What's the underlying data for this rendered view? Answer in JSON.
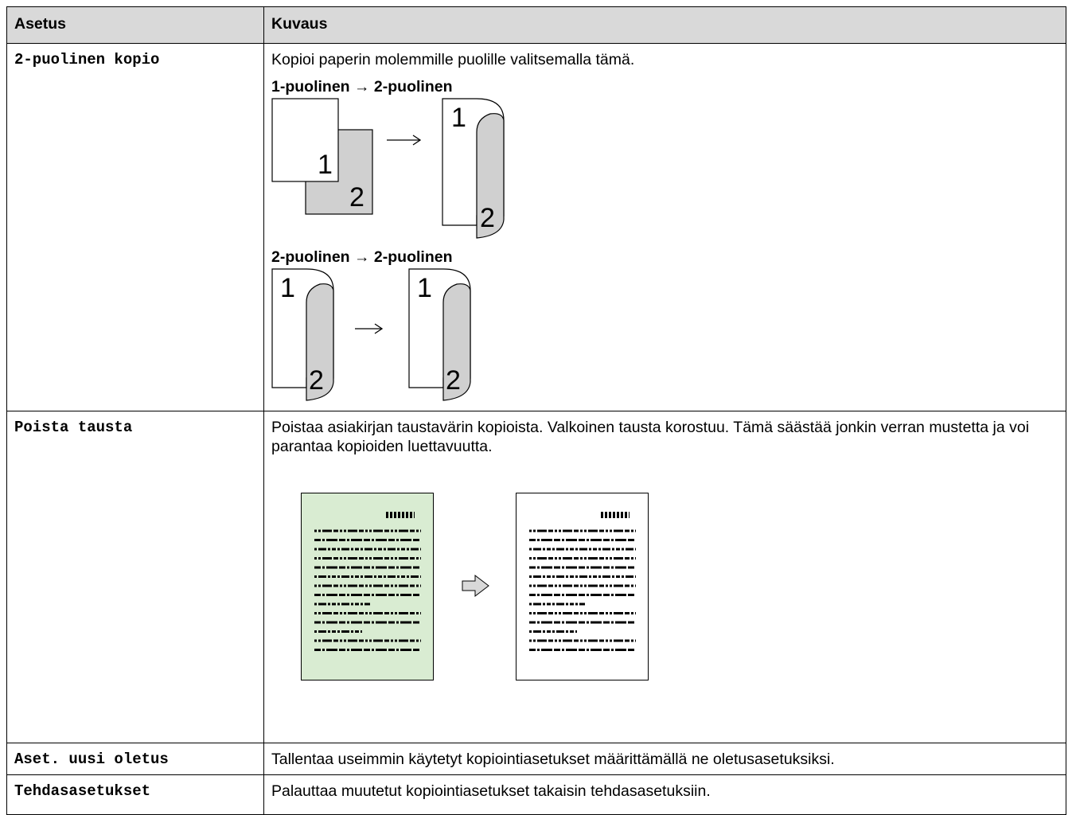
{
  "table": {
    "header": [
      "Asetus",
      "Kuvaus"
    ],
    "rows": [
      {
        "setting": "2-puolinen kopio",
        "description": "Kopioi paperin molemmille puolille valitsemalla tämä.",
        "options": [
          {
            "label": "1-puolinen → 2-puolinen",
            "figure_labels": [
              "1",
              "2",
              "1",
              "2"
            ]
          },
          {
            "label": "2-puolinen → 2-puolinen",
            "figure_labels": [
              "1",
              "2",
              "1",
              "2"
            ]
          }
        ]
      },
      {
        "setting": "Poista tausta",
        "description": "Poistaa asiakirjan taustavärin kopioista. Valkoinen tausta korostuu. Tämä säästää jonkin verran mustetta ja voi parantaa kopioiden luettavuutta."
      },
      {
        "setting": "Aset. uusi oletus",
        "description": "Tallentaa useimmin käytetyt kopiointiasetukset määrittämällä ne oletusasetuksiksi."
      },
      {
        "setting": "Tehdasasetukset",
        "description": "Palauttaa muutetut kopiointiasetukset takaisin tehdasasetuksiin."
      }
    ]
  }
}
